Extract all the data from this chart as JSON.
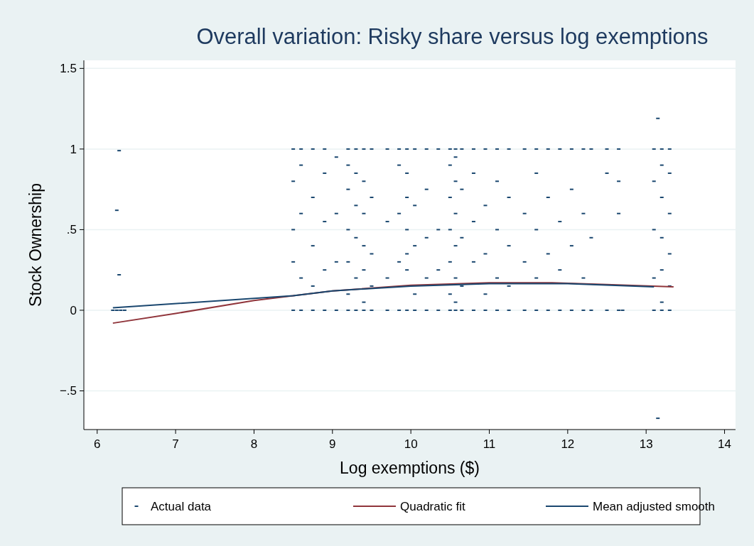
{
  "chart_data": {
    "type": "scatter",
    "title": "Overall variation: Risky share versus log exemptions",
    "xlabel": "Log exemptions ($)",
    "ylabel": "Stock Ownership",
    "xlim": [
      5.83,
      14.14
    ],
    "xticks": [
      6,
      7,
      8,
      9,
      10,
      11,
      12,
      13,
      14
    ],
    "ylim": [
      -0.74,
      1.55
    ],
    "yticks": [
      {
        "value": -0.5,
        "label": "−.5"
      },
      0,
      {
        "value": 0.5,
        "label": ".5"
      },
      1,
      1.5
    ],
    "grid": "y",
    "legend": "bottom",
    "series": [
      {
        "name": "Actual data",
        "marker": "square",
        "color": "#1a476f",
        "x": [
          6.2,
          6.25,
          6.3,
          6.35,
          6.28,
          6.25,
          6.28,
          13.15,
          13.15,
          8.5,
          8.5,
          8.5,
          8.5,
          8.5,
          8.6,
          8.6,
          8.6,
          8.6,
          8.6,
          8.75,
          8.75,
          8.75,
          8.75,
          8.75,
          8.9,
          8.9,
          8.9,
          8.9,
          8.9,
          9.05,
          9.05,
          9.05,
          9.05,
          9.2,
          9.2,
          9.2,
          9.2,
          9.2,
          9.2,
          9.2,
          9.3,
          9.3,
          9.3,
          9.3,
          9.3,
          9.3,
          9.4,
          9.4,
          9.4,
          9.4,
          9.4,
          9.4,
          9.4,
          9.5,
          9.5,
          9.5,
          9.5,
          9.5,
          9.7,
          9.7,
          9.7,
          9.7,
          9.85,
          9.85,
          9.85,
          9.85,
          9.85,
          9.95,
          9.95,
          9.95,
          9.95,
          9.95,
          9.95,
          9.95,
          10.05,
          10.05,
          10.05,
          10.05,
          10.05,
          10.2,
          10.2,
          10.2,
          10.2,
          10.2,
          10.35,
          10.35,
          10.35,
          10.35,
          10.5,
          10.5,
          10.5,
          10.5,
          10.5,
          10.5,
          10.5,
          10.57,
          10.57,
          10.57,
          10.57,
          10.57,
          10.57,
          10.57,
          10.57,
          10.65,
          10.65,
          10.65,
          10.65,
          10.65,
          10.8,
          10.8,
          10.8,
          10.8,
          10.8,
          10.95,
          10.95,
          10.95,
          10.95,
          10.95,
          11.1,
          11.1,
          11.1,
          11.1,
          11.1,
          11.25,
          11.25,
          11.25,
          11.25,
          11.25,
          11.45,
          11.45,
          11.45,
          11.45,
          11.6,
          11.6,
          11.6,
          11.6,
          11.6,
          11.75,
          11.75,
          11.75,
          11.75,
          11.9,
          11.9,
          11.9,
          11.9,
          12.05,
          12.05,
          12.05,
          12.05,
          12.2,
          12.2,
          12.2,
          12.2,
          12.3,
          12.3,
          12.3,
          12.5,
          12.5,
          12.5,
          12.65,
          12.65,
          12.65,
          12.65,
          12.7,
          13.1,
          13.1,
          13.1,
          13.1,
          13.1,
          13.2,
          13.2,
          13.2,
          13.2,
          13.2,
          13.2,
          13.2,
          13.3,
          13.3,
          13.3,
          13.3,
          13.3,
          13.3
        ],
        "values": [
          0,
          0,
          0,
          0,
          0.99,
          0.62,
          0.22,
          1.19,
          -0.67,
          1,
          0.8,
          0.5,
          0.3,
          0,
          1,
          0.9,
          0.6,
          0.2,
          0,
          1,
          0.7,
          0.4,
          0.15,
          0,
          1,
          0.85,
          0.55,
          0.25,
          0,
          0.95,
          0.6,
          0.3,
          0,
          1,
          0.9,
          0.75,
          0.5,
          0.3,
          0.1,
          0,
          1,
          0.85,
          0.65,
          0.45,
          0.2,
          0,
          1,
          0.8,
          0.6,
          0.4,
          0.25,
          0.05,
          0,
          1,
          0.7,
          0.35,
          0.15,
          0,
          1,
          0.55,
          0.2,
          0,
          1,
          0.9,
          0.6,
          0.3,
          0,
          1,
          0.85,
          0.7,
          0.5,
          0.35,
          0.25,
          0,
          1,
          0.65,
          0.4,
          0.1,
          0,
          1,
          0.75,
          0.45,
          0.2,
          0,
          1,
          0.5,
          0.25,
          0,
          1,
          0.9,
          0.7,
          0.5,
          0.3,
          0.1,
          0,
          1,
          0.95,
          0.8,
          0.6,
          0.4,
          0.2,
          0.05,
          0,
          1,
          0.75,
          0.45,
          0.15,
          0,
          1,
          0.85,
          0.55,
          0.3,
          0,
          1,
          0.65,
          0.35,
          0.1,
          0,
          1,
          0.8,
          0.5,
          0.2,
          0,
          1,
          0.7,
          0.4,
          0.15,
          0,
          1,
          0.6,
          0.3,
          0,
          1,
          0.85,
          0.5,
          0.2,
          0,
          1,
          0.7,
          0.35,
          0,
          1,
          0.55,
          0.25,
          0,
          1,
          0.75,
          0.4,
          0,
          1,
          0.6,
          0.2,
          0,
          1,
          0.45,
          0,
          1,
          0.85,
          0,
          1,
          0.8,
          0.6,
          0,
          0,
          1,
          0.8,
          0.5,
          0.2,
          0,
          1,
          0.9,
          0.7,
          0.45,
          0.25,
          0.05,
          0,
          1,
          0.85,
          0.6,
          0.35,
          0.15,
          0
        ]
      },
      {
        "name": "Quadratic fit",
        "type": "line",
        "color": "#90353b",
        "x": [
          6.2,
          7,
          8,
          9,
          10,
          11,
          11.8,
          12.5,
          13.35
        ],
        "values": [
          -0.08,
          -0.02,
          0.06,
          0.12,
          0.155,
          0.17,
          0.17,
          0.16,
          0.145
        ]
      },
      {
        "name": "Mean adjusted smooth",
        "type": "line",
        "color": "#1a476f",
        "x": [
          6.2,
          8.5,
          9,
          10,
          11,
          12,
          13.1
        ],
        "values": [
          0.015,
          0.09,
          0.12,
          0.15,
          0.165,
          0.165,
          0.145
        ]
      }
    ]
  }
}
